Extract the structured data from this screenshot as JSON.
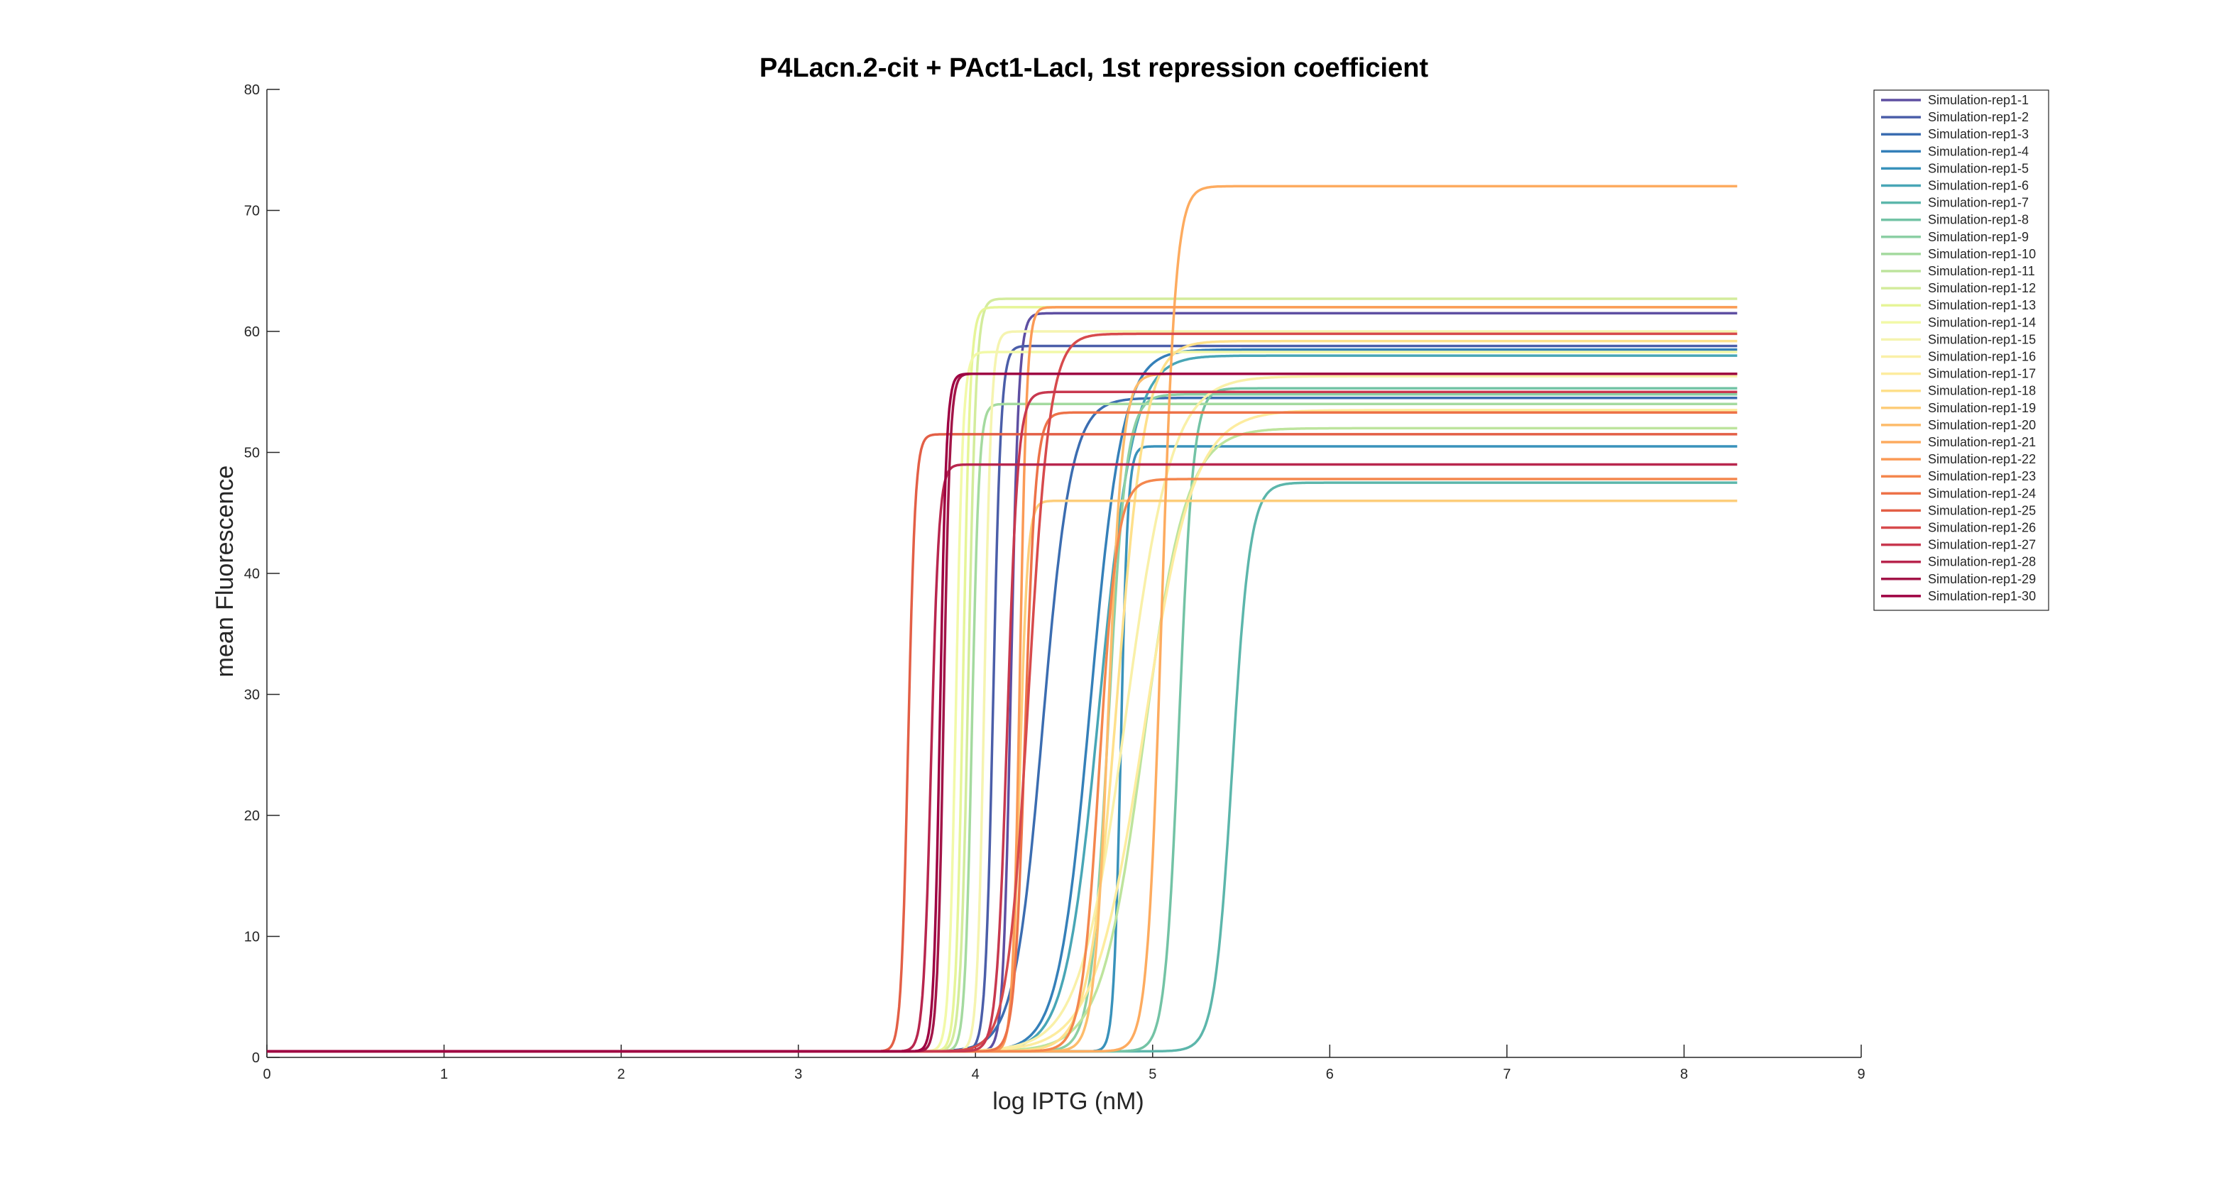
{
  "chart_data": {
    "type": "line",
    "title": "P4Lacn.2-cit + PAct1-LacI, 1st repression coefficient",
    "xlabel": "log IPTG (nM)",
    "ylabel": "mean Fluorescence",
    "xlim": [
      0,
      9
    ],
    "ylim": [
      0,
      80
    ],
    "xticks": [
      0,
      1,
      2,
      3,
      4,
      5,
      6,
      7,
      8,
      9
    ],
    "yticks": [
      0,
      10,
      20,
      30,
      40,
      50,
      60,
      70,
      80
    ],
    "x_end": 8.3,
    "grid": false,
    "legend_position": "top-right",
    "series_model": "sigmoid: y = base + (max - base) / (1 + exp(-(x - mid) / width))",
    "series": [
      {
        "name": "Simulation-rep1-1",
        "color": "#5e4fa2",
        "base": 0.5,
        "max": 61.5,
        "mid": 4.2,
        "width": 0.022
      },
      {
        "name": "Simulation-rep1-2",
        "color": "#4b5ea9",
        "base": 0.5,
        "max": 58.8,
        "mid": 4.1,
        "width": 0.022
      },
      {
        "name": "Simulation-rep1-3",
        "color": "#3b6db1",
        "base": 0.5,
        "max": 54.5,
        "mid": 4.38,
        "width": 0.08
      },
      {
        "name": "Simulation-rep1-4",
        "color": "#3580b9",
        "base": 0.5,
        "max": 58.5,
        "mid": 4.65,
        "width": 0.09
      },
      {
        "name": "Simulation-rep1-5",
        "color": "#3992bb",
        "base": 0.5,
        "max": 50.5,
        "mid": 4.82,
        "width": 0.02
      },
      {
        "name": "Simulation-rep1-6",
        "color": "#48a6b6",
        "base": 0.5,
        "max": 58.0,
        "mid": 4.7,
        "width": 0.095
      },
      {
        "name": "Simulation-rep1-7",
        "color": "#5cb6ab",
        "base": 0.5,
        "max": 47.5,
        "mid": 5.45,
        "width": 0.05
      },
      {
        "name": "Simulation-rep1-8",
        "color": "#73c3a5",
        "base": 0.5,
        "max": 55.3,
        "mid": 5.15,
        "width": 0.04
      },
      {
        "name": "Simulation-rep1-9",
        "color": "#8ccfa4",
        "base": 0.5,
        "max": 54.8,
        "mid": 4.75,
        "width": 0.05
      },
      {
        "name": "Simulation-rep1-10",
        "color": "#a4da9f",
        "base": 0.5,
        "max": 54.0,
        "mid": 3.98,
        "width": 0.02
      },
      {
        "name": "Simulation-rep1-11",
        "color": "#bde49d",
        "base": 0.5,
        "max": 52.0,
        "mid": 4.95,
        "width": 0.12
      },
      {
        "name": "Simulation-rep1-12",
        "color": "#d3ec9c",
        "base": 0.5,
        "max": 62.7,
        "mid": 3.96,
        "width": 0.022
      },
      {
        "name": "Simulation-rep1-13",
        "color": "#e6f598",
        "base": 0.5,
        "max": 62.0,
        "mid": 3.93,
        "width": 0.02
      },
      {
        "name": "Simulation-rep1-14",
        "color": "#f2f9a8",
        "base": 0.5,
        "max": 58.3,
        "mid": 3.89,
        "width": 0.02
      },
      {
        "name": "Simulation-rep1-15",
        "color": "#f5f4b0",
        "base": 0.5,
        "max": 60.0,
        "mid": 4.05,
        "width": 0.02
      },
      {
        "name": "Simulation-rep1-16",
        "color": "#f9f0a8",
        "base": 0.5,
        "max": 56.3,
        "mid": 4.85,
        "width": 0.13
      },
      {
        "name": "Simulation-rep1-17",
        "color": "#fdec9f",
        "base": 0.5,
        "max": 53.5,
        "mid": 4.95,
        "width": 0.14
      },
      {
        "name": "Simulation-rep1-18",
        "color": "#fee08b",
        "base": 0.5,
        "max": 59.2,
        "mid": 4.8,
        "width": 0.08
      },
      {
        "name": "Simulation-rep1-19",
        "color": "#fdcd7a",
        "base": 0.5,
        "max": 46.0,
        "mid": 4.25,
        "width": 0.022
      },
      {
        "name": "Simulation-rep1-20",
        "color": "#fdbc6b",
        "base": 0.5,
        "max": 56.5,
        "mid": 4.75,
        "width": 0.04
      },
      {
        "name": "Simulation-rep1-21",
        "color": "#fdab5f",
        "base": 0.5,
        "max": 72.0,
        "mid": 5.05,
        "width": 0.04
      },
      {
        "name": "Simulation-rep1-22",
        "color": "#fb9a56",
        "base": 0.5,
        "max": 62.0,
        "mid": 4.25,
        "width": 0.02
      },
      {
        "name": "Simulation-rep1-23",
        "color": "#f4874e",
        "base": 0.5,
        "max": 47.8,
        "mid": 4.7,
        "width": 0.05
      },
      {
        "name": "Simulation-rep1-24",
        "color": "#ed7248",
        "base": 0.5,
        "max": 53.3,
        "mid": 4.28,
        "width": 0.03
      },
      {
        "name": "Simulation-rep1-25",
        "color": "#e35f46",
        "base": 0.5,
        "max": 51.5,
        "mid": 3.62,
        "width": 0.02
      },
      {
        "name": "Simulation-rep1-26",
        "color": "#d74a4c",
        "base": 0.5,
        "max": 59.8,
        "mid": 4.3,
        "width": 0.06
      },
      {
        "name": "Simulation-rep1-27",
        "color": "#c8384f",
        "base": 0.5,
        "max": 55.0,
        "mid": 4.18,
        "width": 0.03
      },
      {
        "name": "Simulation-rep1-28",
        "color": "#b8264e",
        "base": 0.5,
        "max": 49.0,
        "mid": 3.75,
        "width": 0.022
      },
      {
        "name": "Simulation-rep1-29",
        "color": "#a31548",
        "base": 0.5,
        "max": 56.5,
        "mid": 3.82,
        "width": 0.018
      },
      {
        "name": "Simulation-rep1-30",
        "color": "#9e0142",
        "base": 0.5,
        "max": 56.5,
        "mid": 3.8,
        "width": 0.018
      }
    ]
  }
}
